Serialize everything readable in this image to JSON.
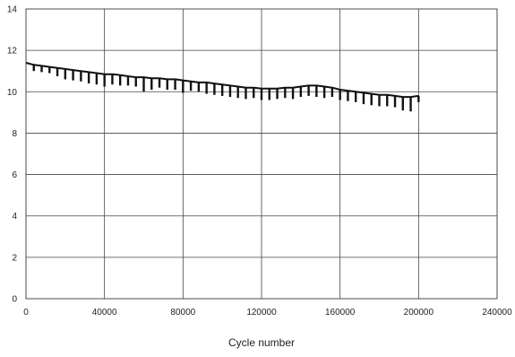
{
  "chart_data": {
    "type": "line",
    "title": "",
    "xlabel": "Cycle number",
    "ylabel": "",
    "xlim": [
      0,
      240000
    ],
    "ylim": [
      0,
      14
    ],
    "x_ticks": [
      0,
      40000,
      80000,
      120000,
      160000,
      200000,
      240000
    ],
    "x_tick_labels": [
      "0",
      "40000",
      "80000",
      "120000",
      "160000",
      "200000",
      "240000"
    ],
    "y_ticks": [
      0,
      2,
      4,
      6,
      8,
      10,
      12,
      14
    ],
    "y_tick_labels": [
      "0",
      "2",
      "4",
      "6",
      "8",
      "10",
      "12",
      "14"
    ],
    "grid": true,
    "legend": "none",
    "series_color": "#111111",
    "series": [
      {
        "x": [
          0,
          4000,
          8000,
          12000,
          16000,
          20000,
          24000,
          28000,
          32000,
          36000,
          40000,
          44000,
          48000,
          52000,
          56000,
          60000,
          64000,
          68000,
          72000,
          76000,
          80000,
          84000,
          88000,
          92000,
          96000,
          100000,
          104000,
          108000,
          112000,
          116000,
          120000,
          124000,
          128000,
          132000,
          136000,
          140000,
          144000,
          148000,
          152000,
          156000,
          160000,
          164000,
          168000,
          172000,
          176000,
          180000,
          184000,
          188000,
          192000,
          196000,
          200000
        ],
        "y": [
          11.4,
          11.3,
          11.25,
          11.2,
          11.15,
          11.1,
          11.05,
          11.0,
          10.95,
          10.9,
          10.85,
          10.85,
          10.8,
          10.75,
          10.7,
          10.7,
          10.65,
          10.65,
          10.6,
          10.6,
          10.55,
          10.5,
          10.45,
          10.45,
          10.4,
          10.35,
          10.3,
          10.25,
          10.2,
          10.2,
          10.15,
          10.15,
          10.15,
          10.2,
          10.2,
          10.25,
          10.3,
          10.3,
          10.25,
          10.2,
          10.1,
          10.05,
          10.0,
          9.95,
          9.9,
          9.85,
          9.85,
          9.8,
          9.75,
          9.75,
          9.8
        ],
        "dip_min": [
          11.4,
          11.0,
          10.95,
          10.9,
          10.75,
          10.6,
          10.55,
          10.5,
          10.4,
          10.35,
          10.25,
          10.35,
          10.3,
          10.3,
          10.25,
          10.0,
          10.1,
          10.2,
          10.1,
          10.1,
          9.95,
          10.05,
          10.0,
          9.9,
          9.85,
          9.8,
          9.75,
          9.7,
          9.65,
          9.7,
          9.6,
          9.6,
          9.65,
          9.7,
          9.65,
          9.75,
          9.8,
          9.75,
          9.7,
          9.75,
          9.6,
          9.55,
          9.5,
          9.4,
          9.35,
          9.3,
          9.3,
          9.25,
          9.1,
          9.05,
          9.5
        ]
      }
    ]
  }
}
